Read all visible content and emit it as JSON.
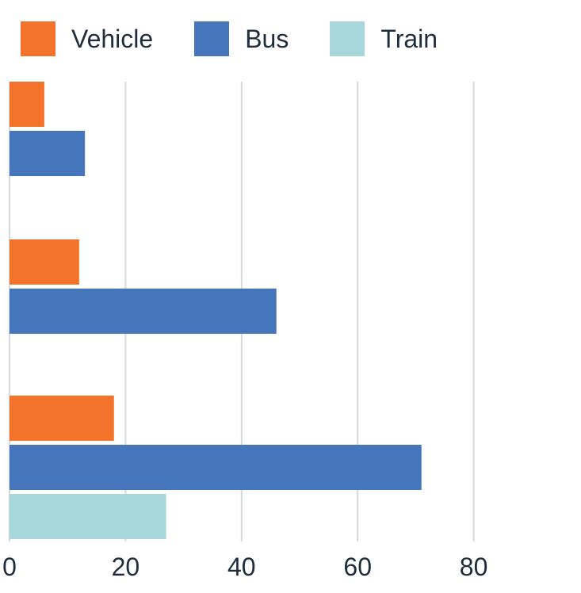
{
  "chart_data": {
    "type": "bar",
    "orientation": "horizontal",
    "categories": [
      "",
      "",
      ""
    ],
    "series": [
      {
        "name": "Vehicle",
        "color": "#f4732b",
        "values": [
          6,
          12,
          18
        ]
      },
      {
        "name": "Bus",
        "color": "#4576bc",
        "values": [
          13,
          46,
          71
        ]
      },
      {
        "name": "Train",
        "color": "#a8d8dc",
        "values": [
          0,
          0,
          27
        ]
      }
    ],
    "xticks": [
      "0",
      "20",
      "40",
      "60",
      "80"
    ],
    "xlim": [
      0,
      95
    ],
    "grid": true,
    "legend_position": "top-left",
    "title": "",
    "xlabel": "",
    "ylabel": ""
  },
  "colors": {
    "grid": "#d4d9de",
    "tick_text": "#1e2d3d"
  }
}
